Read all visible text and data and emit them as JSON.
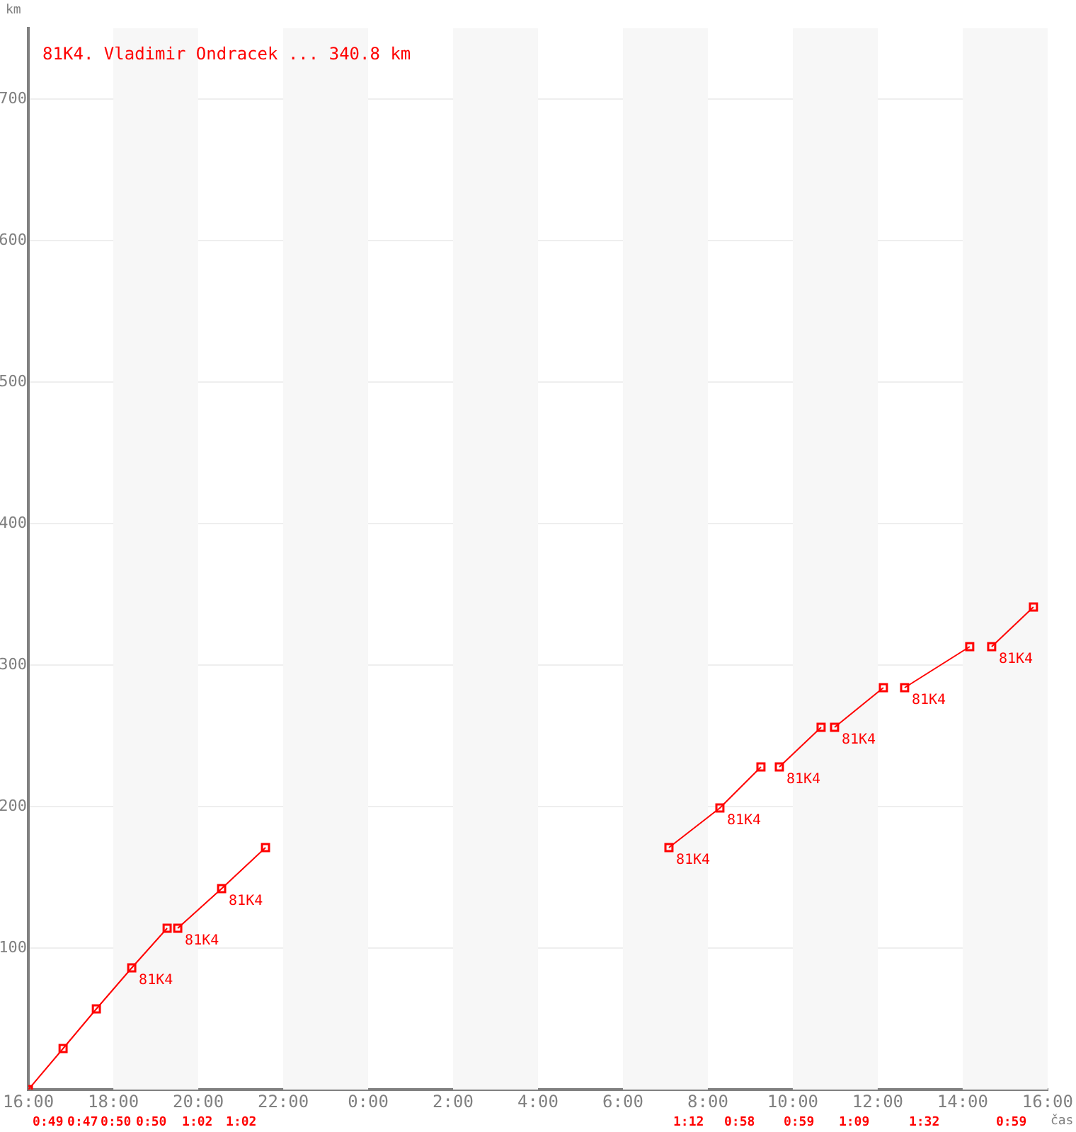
{
  "chart_data": {
    "type": "line",
    "title": "81K4. Vladimir Ondracek ... 340.8 km",
    "xlabel": "čas",
    "ylabel": "km",
    "xlim": [
      "--06-01T16:00",
      "--06-02T16:00"
    ],
    "xticks": [
      {
        "value": "--06-01T16:00",
        "label": "16:00"
      },
      {
        "value": "--06-01T18:00",
        "label": "18:00"
      },
      {
        "value": "--06-01T20:00",
        "label": "20:00"
      },
      {
        "value": "--06-01T22:00",
        "label": "22:00"
      },
      {
        "value": "--06-02T00:00",
        "label": "0:00"
      },
      {
        "value": "--06-02T02:00",
        "label": "2:00"
      },
      {
        "value": "--06-02T04:00",
        "label": "4:00"
      },
      {
        "value": "--06-02T06:00",
        "label": "6:00"
      },
      {
        "value": "--06-02T08:00",
        "label": "8:00"
      },
      {
        "value": "--06-02T10:00",
        "label": "10:00"
      },
      {
        "value": "--06-02T12:00",
        "label": "12:00"
      },
      {
        "value": "--06-02T14:00",
        "label": "14:00"
      },
      {
        "value": "--06-02T16:00",
        "label": "16:00"
      }
    ],
    "ylim": [
      0,
      750
    ],
    "yticks": [
      100,
      200,
      300,
      400,
      500,
      600,
      700
    ],
    "grid": "y",
    "marker": "square",
    "line_style": "solid",
    "series": [
      {
        "color": "#ff0000",
        "x": [
          "--06-01T16:00",
          "--06-01T16:49",
          "--06-01T17:36",
          "--06-01T18:26",
          "--06-01T19:16"
        ],
        "values": [
          0,
          29,
          57,
          86,
          114
        ]
      },
      {
        "color": "#ff0000",
        "x": [
          "--06-01T19:31",
          "--06-01T20:33",
          "--06-01T21:35"
        ],
        "values": [
          114,
          142,
          171
        ]
      },
      {
        "color": "#ff0000",
        "x": [
          "--06-02T07:05",
          "--06-02T08:17",
          "--06-02T09:15"
        ],
        "values": [
          171,
          199,
          228
        ]
      },
      {
        "color": "#ff0000",
        "x": [
          "--06-02T09:41",
          "--06-02T10:40"
        ],
        "values": [
          228,
          256
        ]
      },
      {
        "color": "#ff0000",
        "x": [
          "--06-02T10:59",
          "--06-02T12:08"
        ],
        "values": [
          256,
          284
        ]
      },
      {
        "color": "#ff0000",
        "x": [
          "--06-02T12:38",
          "--06-02T14:10"
        ],
        "values": [
          284,
          313
        ]
      },
      {
        "color": "#ff0000",
        "x": [
          "--06-02T14:41",
          "--06-02T15:40"
        ],
        "values": [
          313,
          341
        ]
      }
    ],
    "bands": [
      {
        "axis": "x",
        "from": "--06-01T18:00",
        "to": "--06-01T20:00",
        "color": "#f7f7f7"
      },
      {
        "axis": "x",
        "from": "--06-01T22:00",
        "to": "--06-02T00:00",
        "color": "#f7f7f7"
      },
      {
        "axis": "x",
        "from": "--06-02T02:00",
        "to": "--06-02T04:00",
        "color": "#f7f7f7"
      },
      {
        "axis": "x",
        "from": "--06-02T06:00",
        "to": "--06-02T08:00",
        "color": "#f7f7f7"
      },
      {
        "axis": "x",
        "from": "--06-02T10:00",
        "to": "--06-02T12:00",
        "color": "#f7f7f7"
      },
      {
        "axis": "x",
        "from": "--06-02T14:00",
        "to": "--06-02T16:00",
        "color": "#f7f7f7"
      }
    ],
    "annotations": [
      {
        "text": "81K4",
        "x": "--06-01T18:26",
        "y": 86
      },
      {
        "text": "81K4",
        "x": "--06-01T19:31",
        "y": 114
      },
      {
        "text": "81K4",
        "x": "--06-01T20:33",
        "y": 142
      },
      {
        "text": "81K4",
        "x": "--06-02T07:05",
        "y": 171
      },
      {
        "text": "81K4",
        "x": "--06-02T08:17",
        "y": 199
      },
      {
        "text": "81K4",
        "x": "--06-02T09:41",
        "y": 228
      },
      {
        "text": "81K4",
        "x": "--06-02T10:59",
        "y": 256
      },
      {
        "text": "81K4",
        "x": "--06-02T12:38",
        "y": 284
      },
      {
        "text": "81K4",
        "x": "--06-02T14:41",
        "y": 313
      },
      "0:49",
      "0:47",
      "0:50",
      "0:50",
      "1:02",
      "1:02",
      "1:12",
      "0:58",
      "0:59",
      "1:09",
      "1:32",
      "0:59"
    ]
  }
}
